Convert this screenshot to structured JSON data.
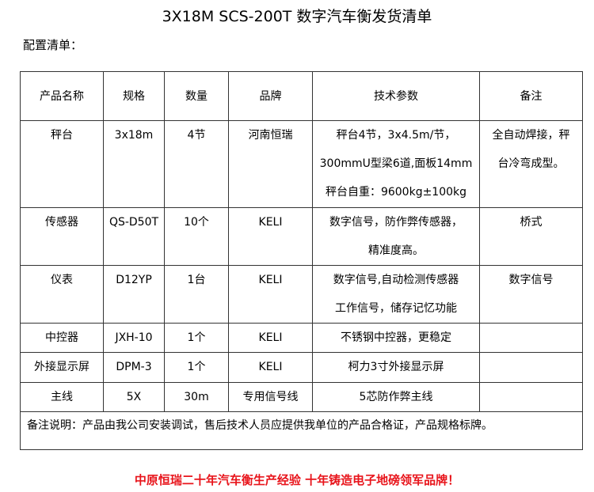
{
  "title": "3X18M SCS-200T 数字汽车衡发货清单",
  "subtitle": "配置清单：",
  "table": {
    "headers": [
      "产品名称",
      "规格",
      "数量",
      "品牌",
      "技术参数",
      "备注"
    ],
    "rows": [
      {
        "name": "秤台",
        "spec": "3x18m",
        "qty": "4节",
        "brand": "河南恒瑞",
        "tech": [
          "秤台4节，3x4.5m/节，",
          "300mmU型梁6道,面板14mm",
          "秤台自重：9600kg±100kg"
        ],
        "note": [
          "全自动焊接，秤",
          "台冷弯成型。"
        ]
      },
      {
        "name": "传感器",
        "spec": "QS-D50T",
        "qty": "10个",
        "brand": "KELI",
        "tech": [
          "数字信号，防作弊传感器，",
          "精准度高。"
        ],
        "note": [
          "桥式"
        ]
      },
      {
        "name": "仪表",
        "spec": "D12YP",
        "qty": "1台",
        "brand": "KELI",
        "tech": [
          "数字信号,自动检测传感器",
          "工作信号，储存记忆功能"
        ],
        "note": [
          "数字信号"
        ]
      },
      {
        "name": "中控器",
        "spec": "JXH-10",
        "qty": "1个",
        "brand": "KELI",
        "tech": [
          "不锈钢中控器，更稳定"
        ],
        "note": []
      },
      {
        "name": "外接显示屏",
        "spec": "DPM-3",
        "qty": "1个",
        "brand": "KELI",
        "tech": [
          "柯力3寸外接显示屏"
        ],
        "note": []
      },
      {
        "name": "主线",
        "spec": "5X",
        "qty": "30m",
        "brand": "专用信号线",
        "tech": [
          "5芯防作弊主线"
        ],
        "note": []
      }
    ],
    "remark": "备注说明：产品由我公司安装调试，售后技术人员应提供我单位的产品合格证，产品规格标牌。"
  },
  "slogan": "中原恒瑞二十年汽车衡生产经验  十年铸造电子地磅领军品牌！",
  "colors": {
    "slogan": "#e8141b"
  }
}
